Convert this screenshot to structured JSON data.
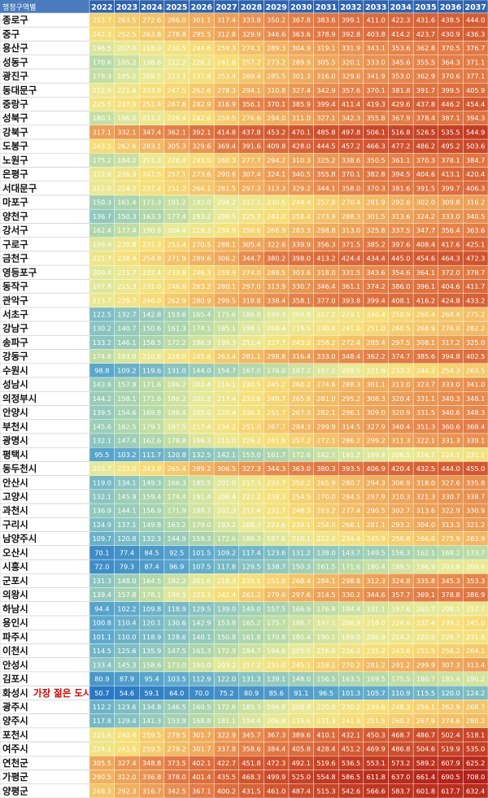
{
  "table": {
    "corner_label": "행정구역별",
    "years": [
      "2022",
      "2023",
      "2024",
      "2025",
      "2026",
      "2027",
      "2028",
      "2029",
      "2030",
      "2031",
      "2032",
      "2033",
      "2034",
      "2035",
      "2036",
      "2037"
    ],
    "note": "가장 젊은 도시",
    "note_row": 48,
    "rows": [
      {
        "name": "종로구",
        "values": [
          253.7,
          263.5,
          272.6,
          286.0,
          301.1,
          317.4,
          333.8,
          350.2,
          367.8,
          383.6,
          399.1,
          411.0,
          422.3,
          431.6,
          438.5,
          444.0
        ]
      },
      {
        "name": "중구",
        "values": [
          242.3,
          252.5,
          263.8,
          278.8,
          295.5,
          312.8,
          329.9,
          346.6,
          363.6,
          378.9,
          392.8,
          403.8,
          414.2,
          423.7,
          430.9,
          436.3
        ]
      },
      {
        "name": "용산구",
        "values": [
          196.5,
          207.4,
          218.0,
          230.5,
          244.6,
          259.3,
          274.1,
          289.3,
          304.9,
          319.1,
          331.9,
          343.1,
          353.6,
          362.8,
          370.5,
          376.7
        ]
      },
      {
        "name": "성동구",
        "values": [
          170.6,
          185.2,
          198.6,
          212.2,
          226.2,
          241.6,
          257.2,
          273.2,
          289.9,
          305.5,
          320.1,
          333.0,
          345.6,
          355.5,
          364.3,
          371.1
        ]
      },
      {
        "name": "광진구",
        "values": [
          178.3,
          195.2,
          209.5,
          223.1,
          237.8,
          253.4,
          269.4,
          285.5,
          301.3,
          316.0,
          329.6,
          341.9,
          353.0,
          362.9,
          370.6,
          377.1
        ]
      },
      {
        "name": "동대문구",
        "values": [
          212.9,
          221.6,
          233.9,
          247.5,
          262.6,
          278.3,
          294.1,
          310.8,
          327.4,
          342.9,
          357.6,
          370.1,
          381.8,
          391.7,
          399.5,
          405.9
        ]
      },
      {
        "name": "중랑구",
        "values": [
          225.5,
          237.0,
          251.4,
          267.6,
          282.9,
          316.9,
          356.1,
          370.1,
          385.9,
          399.4,
          411.4,
          419.3,
          429.6,
          437.8,
          446.2,
          454.4
        ]
      },
      {
        "name": "성북구",
        "values": [
          180.1,
          196.0,
          211.2,
          226.4,
          242.6,
          259.5,
          276.6,
          294.0,
          311.0,
          327.1,
          342.3,
          355.8,
          367.9,
          378.4,
          387.1,
          394.3
        ]
      },
      {
        "name": "강북구",
        "values": [
          317.1,
          332.1,
          347.4,
          362.1,
          392.1,
          414.8,
          437.8,
          453.2,
          470.1,
          485.8,
          497.8,
          506.1,
          516.8,
          526.5,
          535.5,
          544.9
        ]
      },
      {
        "name": "도봉구",
        "values": [
          243.5,
          262.6,
          283.1,
          305.3,
          329.6,
          369.4,
          391.6,
          409.8,
          428.0,
          444.5,
          457.2,
          466.3,
          477.2,
          486.2,
          495.2,
          503.6
        ]
      },
      {
        "name": "노원구",
        "values": [
          175.2,
          184.2,
          211.3,
          226.4,
          243.0,
          260.3,
          277.7,
          294.2,
          310.3,
          325.2,
          338.6,
          350.5,
          361.1,
          370.3,
          378.1,
          384.7
        ]
      },
      {
        "name": "은평구",
        "values": [
          212.6,
          226.3,
          241.5,
          257.1,
          273.6,
          290.6,
          307.4,
          324.1,
          340.5,
          355.8,
          370.1,
          382.8,
          394.5,
          404.6,
          413.1,
          420.4
        ]
      },
      {
        "name": "서대문구",
        "values": [
          212.0,
          224.2,
          237.4,
          251.2,
          266.1,
          281.5,
          297.3,
          313.3,
          329.2,
          344.1,
          358.0,
          370.3,
          381.6,
          391.5,
          399.7,
          406.3
        ]
      },
      {
        "name": "마포구",
        "values": [
          150.3,
          161.4,
          171.3,
          181.2,
          192.0,
          204.2,
          217.1,
          230.5,
          244.4,
          257.8,
          270.4,
          281.9,
          292.6,
          302.0,
          309.8,
          316.2
        ]
      },
      {
        "name": "양천구",
        "values": [
          136.7,
          150.3,
          163.3,
          177.4,
          193.2,
          209.5,
          225.7,
          242.0,
          258.4,
          273.9,
          288.3,
          301.5,
          313.6,
          324.2,
          333.0,
          340.5
        ]
      },
      {
        "name": "강서구",
        "values": [
          162.4,
          177.4,
          190.9,
          204.4,
          219.3,
          234.9,
          250.6,
          266.9,
          283.3,
          298.8,
          313.0,
          325.8,
          337.5,
          347.7,
          356.4,
          363.6
        ]
      },
      {
        "name": "구로구",
        "values": [
          199.4,
          220.8,
          237.3,
          253.4,
          270.5,
          288.1,
          305.4,
          322.6,
          339.9,
          356.3,
          371.5,
          385.2,
          397.6,
          408.4,
          417.6,
          425.1
        ]
      },
      {
        "name": "금천구",
        "values": [
          221.7,
          238.4,
          254.8,
          271.9,
          289.6,
          306.2,
          344.7,
          380.2,
          398.0,
          413.2,
          424.4,
          434.4,
          445.0,
          454.6,
          464.3,
          472.3
        ]
      },
      {
        "name": "영등포구",
        "values": [
          200.4,
          211.7,
          222.4,
          233.8,
          246.3,
          259.9,
          274.0,
          288.5,
          303.6,
          318.0,
          331.5,
          343.6,
          354.6,
          364.1,
          372.0,
          378.7
        ]
      },
      {
        "name": "동작구",
        "values": [
          197.8,
          215.3,
          231.0,
          246.6,
          263.2,
          280.1,
          297.0,
          313.9,
          330.7,
          346.4,
          361.1,
          374.2,
          386.0,
          396.1,
          404.6,
          411.7
        ]
      },
      {
        "name": "관악구",
        "values": [
          213.7,
          229.7,
          246.0,
          262.9,
          280.9,
          299.5,
          318.8,
          338.4,
          358.1,
          377.0,
          393.8,
          399.4,
          408.1,
          416.2,
          424.8,
          433.2
        ]
      },
      {
        "name": "서초구",
        "values": [
          122.5,
          132.7,
          142.8,
          153.6,
          165.4,
          175.6,
          186.8,
          199.3,
          204.8,
          217.2,
          229.1,
          240.4,
          250.9,
          260.4,
          268.4,
          275.2
        ]
      },
      {
        "name": "강남구",
        "values": [
          130.2,
          140.7,
          150.6,
          161.3,
          174.1,
          185.1,
          198.1,
          208.4,
          219.5,
          230.4,
          241.0,
          251.0,
          260.5,
          268.9,
          276.0,
          282.2
        ]
      },
      {
        "name": "송파구",
        "values": [
          133.2,
          146.1,
          158.5,
          172.2,
          186.9,
          199.3,
          212.4,
          227.7,
          243.2,
          258.2,
          272.4,
          285.4,
          297.5,
          308.1,
          317.2,
          325.0
        ]
      },
      {
        "name": "강동구",
        "values": [
          174.8,
          193.0,
          210.6,
          228.0,
          245.6,
          263.4,
          281.1,
          298.8,
          316.4,
          333.0,
          348.4,
          362.2,
          374.7,
          385.6,
          394.8,
          402.5
        ]
      },
      {
        "name": "수원시",
        "values": [
          98.8,
          109.2,
          119.6,
          131.0,
          144.0,
          154.7,
          167.0,
          176.0,
          187.2,
          197.2,
          209.5,
          221.6,
          233.3,
          244.2,
          254.3,
          263.5
        ]
      },
      {
        "name": "성남시",
        "values": [
          143.6,
          157.9,
          171.6,
          186.2,
          202.4,
          216.1,
          230.5,
          245.2,
          260.2,
          274.6,
          288.3,
          301.1,
          313.0,
          323.7,
          333.0,
          341.0
        ]
      },
      {
        "name": "의정부시",
        "values": [
          144.2,
          158.1,
          171.6,
          186.2,
          202.5,
          217.4,
          233.6,
          249.7,
          265.8,
          281.0,
          295.2,
          308.3,
          320.4,
          331.1,
          340.3,
          348.1
        ]
      },
      {
        "name": "안양시",
        "values": [
          139.5,
          154.6,
          169.8,
          186.4,
          205.0,
          220.4,
          236.1,
          251.7,
          267.3,
          282.1,
          296.1,
          309.0,
          320.9,
          331.5,
          340.6,
          348.3
        ]
      },
      {
        "name": "부천시",
        "values": [
          145.6,
          162.5,
          179.1,
          197.5,
          217.4,
          234.2,
          251.0,
          267.7,
          284.3,
          299.9,
          314.5,
          327.9,
          340.4,
          351.3,
          360.6,
          368.4
        ]
      },
      {
        "name": "광명시",
        "values": [
          132.1,
          147.4,
          162.6,
          178.8,
          196.3,
          211.0,
          226.2,
          241.6,
          257.2,
          272.1,
          286.2,
          299.2,
          311.3,
          322.1,
          331.3,
          339.1
        ]
      },
      {
        "name": "평택시",
        "values": [
          95.5,
          103.2,
          111.7,
          120.8,
          132.5,
          142.1,
          153.0,
          161.7,
          172.6,
          182.7,
          191.2,
          199.4,
          206.5,
          216.7,
          224.1,
          231.1
        ]
      },
      {
        "name": "동두천시",
        "values": [
          203.7,
          223.0,
          243.9,
          265.4,
          289.2,
          306.5,
          327.3,
          344.3,
          363.0,
          380.3,
          393.5,
          406.9,
          420.4,
          432.5,
          444.0,
          455.0
        ]
      },
      {
        "name": "안산시",
        "values": [
          119.0,
          134.1,
          149.3,
          166.3,
          185.5,
          201.0,
          217.3,
          233.7,
          250.2,
          265.9,
          280.7,
          294.3,
          306.9,
          318.0,
          327.6,
          335.8
        ]
      },
      {
        "name": "고양시",
        "values": [
          132.1,
          145.9,
          159.4,
          174.4,
          191.4,
          206.4,
          222.2,
          238.3,
          254.5,
          270.0,
          284.5,
          297.9,
          310.3,
          321.3,
          330.7,
          338.7
        ]
      },
      {
        "name": "과천시",
        "values": [
          136.9,
          144.1,
          156.9,
          171.9,
          188.7,
          202.3,
          217.4,
          232.7,
          248.3,
          263.2,
          277.4,
          290.5,
          302.7,
          313.6,
          322.9,
          330.9
        ]
      },
      {
        "name": "구리시",
        "values": [
          124.9,
          137.1,
          149.8,
          163.2,
          179.0,
          193.2,
          208.3,
          223.6,
          239.1,
          254.0,
          268.1,
          281.1,
          293.2,
          304.0,
          313.3,
          321.2
        ]
      },
      {
        "name": "남양주시",
        "values": [
          109.7,
          120.8,
          132.3,
          144.9,
          159.3,
          172.6,
          186.3,
          197.6,
          210.1,
          222.4,
          234.4,
          245.9,
          256.8,
          266.8,
          275.9,
          283.9
        ]
      },
      {
        "name": "오산시",
        "values": [
          70.1,
          77.4,
          84.5,
          92.5,
          101.5,
          109.2,
          117.4,
          123.6,
          131.2,
          138.0,
          143.7,
          149.5,
          156.3,
          162.1,
          168.2,
          173.7
        ]
      },
      {
        "name": "시흥시",
        "values": [
          72.0,
          79.3,
          87.4,
          96.9,
          107.5,
          117.8,
          129.5,
          138.7,
          150.3,
          161.5,
          171.6,
          180.4,
          189.5,
          196.9,
          203.9,
          209.9
        ]
      },
      {
        "name": "군포시",
        "values": [
          131.3,
          148.0,
          164.5,
          182.2,
          201.6,
          218.3,
          235.1,
          251.8,
          268.4,
          284.1,
          298.8,
          312.3,
          324.8,
          335.8,
          345.3,
          353.3
        ]
      },
      {
        "name": "의왕시",
        "values": [
          139.4,
          157.8,
          178.1,
          199.5,
          223.1,
          242.4,
          261.2,
          279.6,
          297.6,
          314.5,
          330.2,
          344.6,
          357.7,
          369.1,
          378.8,
          386.9
        ]
      },
      {
        "name": "하남시",
        "values": [
          94.4,
          102.2,
          109.8,
          118.9,
          129.5,
          139.0,
          149.0,
          157.5,
          166.9,
          176.8,
          184.4,
          191.1,
          197.6,
          202.7,
          208.1,
          212.7
        ]
      },
      {
        "name": "용인시",
        "values": [
          100.8,
          110.4,
          120.1,
          130.6,
          142.9,
          153.8,
          165.2,
          175.7,
          186.7,
          197.1,
          206.9,
          216.0,
          224.6,
          232.4,
          239.2,
          245.0
        ]
      },
      {
        "name": "파주시",
        "values": [
          101.1,
          110.0,
          118.9,
          128.6,
          140.1,
          150.8,
          161.8,
          170.8,
          180.4,
          190.1,
          199.0,
          206.9,
          214.2,
          220.9,
          226.7,
          231.8
        ]
      },
      {
        "name": "이천시",
        "values": [
          114.5,
          125.6,
          135.9,
          147.5,
          161.3,
          172.9,
          184.7,
          194.6,
          205.5,
          216.8,
          226.2,
          235.2,
          243.8,
          251.5,
          258.2,
          264.1
        ]
      },
      {
        "name": "안성시",
        "values": [
          133.4,
          145.3,
          158.6,
          173.0,
          190.0,
          203.2,
          217.2,
          231.0,
          245.1,
          258.1,
          270.2,
          281.2,
          291.2,
          299.9,
          307.3,
          313.4
        ]
      },
      {
        "name": "김포시",
        "values": [
          80.9,
          87.9,
          95.4,
          103.5,
          112.9,
          122.0,
          131.3,
          139.1,
          148.0,
          156.5,
          163.5,
          169.5,
          175.5,
          180.7,
          185.4,
          190.2
        ]
      },
      {
        "name": "화성시",
        "values": [
          50.7,
          54.6,
          59.1,
          64.0,
          70.0,
          75.2,
          80.9,
          85.6,
          91.1,
          96.5,
          101.3,
          105.7,
          110.9,
          115.5,
          120.0,
          124.2
        ]
      },
      {
        "name": "광주시",
        "values": [
          112.2,
          123.6,
          134.8,
          146.5,
          160.5,
          172.6,
          185.3,
          196.8,
          208.8,
          220.0,
          230.2,
          239.6,
          248.3,
          256.1,
          262.9,
          268.7
        ]
      },
      {
        "name": "양주시",
        "values": [
          117.8,
          129.4,
          141.3,
          153.9,
          168.8,
          181.1,
          194.4,
          206.8,
          219.6,
          231.3,
          241.8,
          251.5,
          260.2,
          267.9,
          274.6,
          280.2
        ]
      },
      {
        "name": "포천시",
        "values": [
          221.6,
          240.4,
          259.5,
          279.5,
          301.7,
          322.9,
          345.7,
          367.3,
          389.6,
          410.1,
          432.1,
          450.3,
          468.7,
          486.7,
          502.4,
          518.1
        ]
      },
      {
        "name": "여주시",
        "values": [
          224.1,
          241.6,
          259.5,
          279.2,
          301.7,
          337.8,
          358.6,
          384.4,
          405.8,
          428.4,
          451.2,
          469.9,
          486.8,
          504.6,
          519.9,
          535.0
        ]
      },
      {
        "name": "연천군",
        "values": [
          305.5,
          327.4,
          348.8,
          373.5,
          402.1,
          422.7,
          451.8,
          472.3,
          492.1,
          519.6,
          536.5,
          553.1,
          573.2,
          589.2,
          607.9,
          625.2
        ]
      },
      {
        "name": "가평군",
        "values": [
          290.5,
          312.0,
          336.8,
          378.0,
          401.4,
          435.5,
          468.3,
          499.9,
          525.0,
          554.8,
          586.5,
          611.8,
          637.0,
          661.4,
          690.5,
          708.0
        ]
      },
      {
        "name": "양평군",
        "values": [
          268.3,
          292.3,
          316.7,
          342.5,
          367.1,
          400.2,
          431.5,
          461.0,
          487.4,
          515.3,
          542.6,
          566.6,
          583.7,
          601.8,
          617.7,
          632.4
        ]
      }
    ]
  }
}
